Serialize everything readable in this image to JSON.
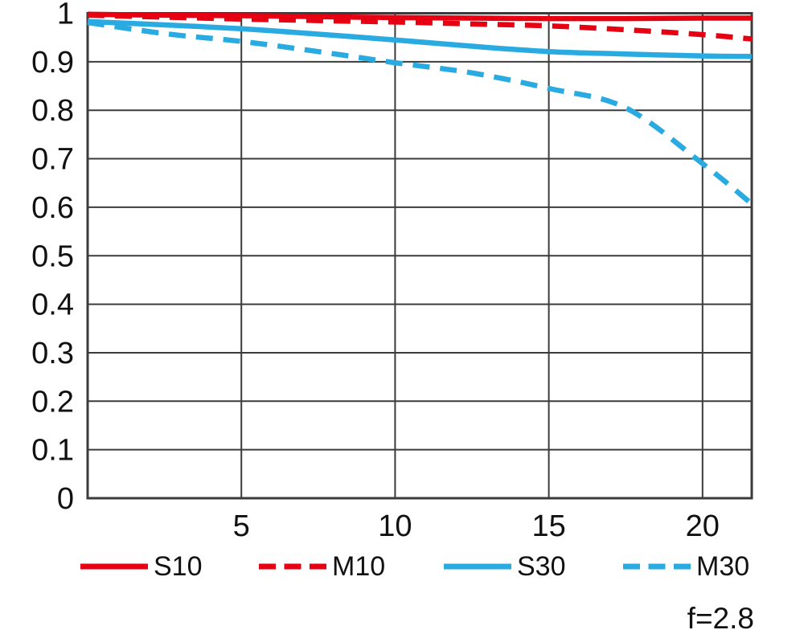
{
  "chart_data": {
    "type": "line",
    "title": "",
    "xlabel": "",
    "ylabel": "",
    "xlim": [
      0,
      21.6
    ],
    "ylim": [
      0,
      1
    ],
    "xticks": [
      5,
      10,
      15,
      20
    ],
    "yticks": [
      0,
      0.1,
      0.2,
      0.3,
      0.4,
      0.5,
      0.6,
      0.7,
      0.8,
      0.9,
      1
    ],
    "ytick_labels": [
      "0",
      "0.1",
      "0.2",
      "0.3",
      "0.4",
      "0.5",
      "0.6",
      "0.7",
      "0.8",
      "0.9",
      "1"
    ],
    "grid": true,
    "legend_position": "bottom",
    "annotation": "f=2.8",
    "x": [
      0,
      2.5,
      5,
      7.5,
      10,
      12.5,
      15,
      17.5,
      20,
      21.6
    ],
    "series": [
      {
        "name": "S10",
        "color": "#e60012",
        "style": "solid",
        "values": [
          0.998,
          0.996,
          0.995,
          0.993,
          0.991,
          0.99,
          0.989,
          0.989,
          0.99,
          0.99
        ]
      },
      {
        "name": "M10",
        "color": "#e60012",
        "style": "dashed",
        "values": [
          0.996,
          0.992,
          0.988,
          0.985,
          0.982,
          0.978,
          0.974,
          0.966,
          0.956,
          0.947
        ]
      },
      {
        "name": "S30",
        "color": "#29abe2",
        "style": "solid",
        "values": [
          0.983,
          0.976,
          0.968,
          0.957,
          0.945,
          0.932,
          0.921,
          0.916,
          0.912,
          0.911
        ]
      },
      {
        "name": "M30",
        "color": "#29abe2",
        "style": "dashed",
        "values": [
          0.981,
          0.958,
          0.942,
          0.921,
          0.898,
          0.877,
          0.845,
          0.805,
          0.69,
          0.607
        ]
      }
    ]
  },
  "colors": {
    "grid": "#3b3b3b",
    "text": "#111111",
    "red": "#e60012",
    "blue": "#29abe2",
    "background": "#ffffff"
  }
}
